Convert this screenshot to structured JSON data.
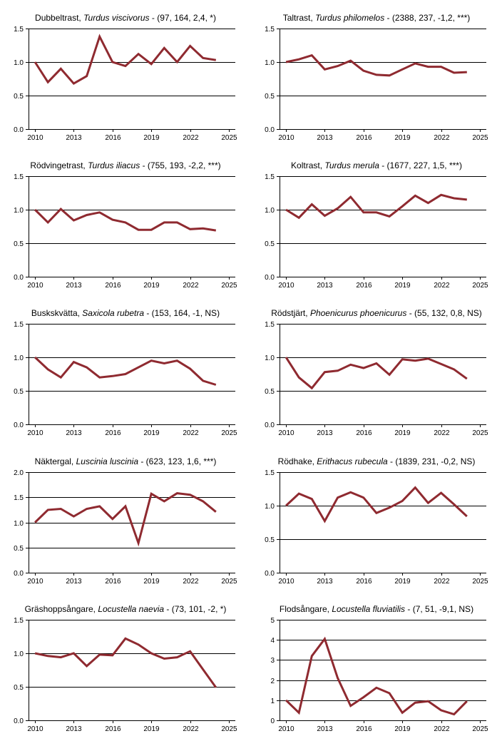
{
  "chart_data": [
    {
      "type": "line",
      "title": "Dubbeltrast, Turdus viscivorus - (97, 164, 2,4, *)",
      "title_parts": {
        "common": "Dubbeltrast, ",
        "latin": "Turdus viscivorus",
        "stats": " - (97, 164, 2,4, *)"
      },
      "x": [
        2010,
        2011,
        2012,
        2013,
        2014,
        2015,
        2016,
        2017,
        2018,
        2019,
        2020,
        2021,
        2022,
        2023,
        2024
      ],
      "values": [
        1.0,
        0.7,
        0.9,
        0.68,
        0.79,
        1.38,
        1.0,
        0.94,
        1.12,
        0.97,
        1.21,
        1.0,
        1.24,
        1.06,
        1.03
      ],
      "ylim": [
        0,
        1.5
      ],
      "yticks": [
        "0.0",
        "0.5",
        "1.0",
        "1.5"
      ],
      "ytick_values": [
        0,
        0.5,
        1.0,
        1.5
      ],
      "xticks": [
        "2010",
        "2013",
        "2016",
        "2019",
        "2022",
        "2025"
      ]
    },
    {
      "type": "line",
      "title": "Taltrast, Turdus philomelos - (2388, 237, -1,2, ***)",
      "title_parts": {
        "common": "Taltrast, ",
        "latin": "Turdus philomelos",
        "stats": " - (2388, 237, -1,2, ***)"
      },
      "x": [
        2010,
        2011,
        2012,
        2013,
        2014,
        2015,
        2016,
        2017,
        2018,
        2019,
        2020,
        2021,
        2022,
        2023,
        2024
      ],
      "values": [
        1.0,
        1.04,
        1.1,
        0.89,
        0.94,
        1.02,
        0.87,
        0.81,
        0.8,
        0.89,
        0.98,
        0.93,
        0.93,
        0.84,
        0.85
      ],
      "ylim": [
        0,
        1.5
      ],
      "yticks": [
        "0.0",
        "0.5",
        "1.0",
        "1.5"
      ],
      "ytick_values": [
        0,
        0.5,
        1.0,
        1.5
      ],
      "xticks": [
        "2010",
        "2013",
        "2016",
        "2019",
        "2022",
        "2025"
      ]
    },
    {
      "type": "line",
      "title": "Rödvingetrast, Turdus iliacus - (755, 193, -2,2, ***)",
      "title_parts": {
        "common": "Rödvingetrast, ",
        "latin": "Turdus iliacus",
        "stats": " - (755, 193, -2,2, ***)"
      },
      "x": [
        2010,
        2011,
        2012,
        2013,
        2014,
        2015,
        2016,
        2017,
        2018,
        2019,
        2020,
        2021,
        2022,
        2023,
        2024
      ],
      "values": [
        1.0,
        0.81,
        1.01,
        0.84,
        0.92,
        0.96,
        0.85,
        0.81,
        0.7,
        0.7,
        0.81,
        0.81,
        0.71,
        0.72,
        0.69
      ],
      "ylim": [
        0,
        1.5
      ],
      "yticks": [
        "0.0",
        "0.5",
        "1.0",
        "1.5"
      ],
      "ytick_values": [
        0,
        0.5,
        1.0,
        1.5
      ],
      "xticks": [
        "2010",
        "2013",
        "2016",
        "2019",
        "2022",
        "2025"
      ]
    },
    {
      "type": "line",
      "title": "Koltrast, Turdus merula - (1677, 227, 1,5, ***)",
      "title_parts": {
        "common": "Koltrast, ",
        "latin": "Turdus merula",
        "stats": " - (1677, 227, 1,5, ***)"
      },
      "x": [
        2010,
        2011,
        2012,
        2013,
        2014,
        2015,
        2016,
        2017,
        2018,
        2019,
        2020,
        2021,
        2022,
        2023,
        2024
      ],
      "values": [
        1.0,
        0.88,
        1.08,
        0.91,
        1.02,
        1.19,
        0.96,
        0.96,
        0.9,
        1.05,
        1.21,
        1.1,
        1.22,
        1.17,
        1.15
      ],
      "ylim": [
        0,
        1.5
      ],
      "yticks": [
        "0.0",
        "0.5",
        "1.0",
        "1.5"
      ],
      "ytick_values": [
        0,
        0.5,
        1.0,
        1.5
      ],
      "xticks": [
        "2010",
        "2013",
        "2016",
        "2019",
        "2022",
        "2025"
      ]
    },
    {
      "type": "line",
      "title": "Buskskvätta, Saxicola rubetra - (153, 164, -1, NS)",
      "title_parts": {
        "common": "Buskskvätta, ",
        "latin": "Saxicola rubetra",
        "stats": " - (153, 164, -1, NS)"
      },
      "x": [
        2010,
        2011,
        2012,
        2013,
        2014,
        2015,
        2016,
        2017,
        2018,
        2019,
        2020,
        2021,
        2022,
        2023,
        2024
      ],
      "values": [
        1.0,
        0.82,
        0.7,
        0.93,
        0.85,
        0.7,
        0.72,
        0.75,
        0.85,
        0.95,
        0.91,
        0.95,
        0.83,
        0.65,
        0.59
      ],
      "ylim": [
        0,
        1.5
      ],
      "yticks": [
        "0.0",
        "0.5",
        "1.0",
        "1.5"
      ],
      "ytick_values": [
        0,
        0.5,
        1.0,
        1.5
      ],
      "xticks": [
        "2010",
        "2013",
        "2016",
        "2019",
        "2022",
        "2025"
      ]
    },
    {
      "type": "line",
      "title": "Rödstjärt, Phoenicurus phoenicurus - (55, 132, 0,8, NS)",
      "title_parts": {
        "common": "Rödstjärt, ",
        "latin": "Phoenicurus phoenicurus",
        "stats": " - (55, 132, 0,8, NS)"
      },
      "x": [
        2010,
        2011,
        2012,
        2013,
        2014,
        2015,
        2016,
        2017,
        2018,
        2019,
        2020,
        2021,
        2022,
        2023,
        2024
      ],
      "values": [
        1.0,
        0.7,
        0.54,
        0.78,
        0.8,
        0.89,
        0.84,
        0.91,
        0.74,
        0.97,
        0.95,
        0.98,
        0.9,
        0.82,
        0.68
      ],
      "ylim": [
        0,
        1.5
      ],
      "yticks": [
        "0.0",
        "0.5",
        "1.0",
        "1.5"
      ],
      "ytick_values": [
        0,
        0.5,
        1.0,
        1.5
      ],
      "xticks": [
        "2010",
        "2013",
        "2016",
        "2019",
        "2022",
        "2025"
      ]
    },
    {
      "type": "line",
      "title": "Näktergal, Luscinia luscinia - (623, 123, 1,6, ***)",
      "title_parts": {
        "common": "Näktergal, ",
        "latin": "Luscinia luscinia",
        "stats": " - (623, 123, 1,6, ***)"
      },
      "x": [
        2010,
        2011,
        2012,
        2013,
        2014,
        2015,
        2016,
        2017,
        2018,
        2019,
        2020,
        2021,
        2022,
        2023,
        2024
      ],
      "values": [
        1.0,
        1.25,
        1.27,
        1.12,
        1.27,
        1.32,
        1.07,
        1.32,
        0.59,
        1.57,
        1.42,
        1.58,
        1.55,
        1.42,
        1.21
      ],
      "ylim": [
        0,
        2.0
      ],
      "yticks": [
        "0.0",
        "0.5",
        "1.0",
        "1.5",
        "2.0"
      ],
      "ytick_values": [
        0,
        0.5,
        1.0,
        1.5,
        2.0
      ],
      "xticks": [
        "2010",
        "2013",
        "2016",
        "2019",
        "2022",
        "2025"
      ]
    },
    {
      "type": "line",
      "title": "Rödhake, Erithacus rubecula - (1839, 231, -0,2, NS)",
      "title_parts": {
        "common": "Rödhake, ",
        "latin": "Erithacus rubecula",
        "stats": " - (1839, 231, -0,2, NS)"
      },
      "x": [
        2010,
        2011,
        2012,
        2013,
        2014,
        2015,
        2016,
        2017,
        2018,
        2019,
        2020,
        2021,
        2022,
        2023,
        2024
      ],
      "values": [
        1.0,
        1.18,
        1.1,
        0.77,
        1.12,
        1.2,
        1.12,
        0.89,
        0.97,
        1.07,
        1.27,
        1.04,
        1.19,
        1.02,
        0.84
      ],
      "ylim": [
        0,
        1.5
      ],
      "yticks": [
        "0.0",
        "0.5",
        "1.0",
        "1.5"
      ],
      "ytick_values": [
        0,
        0.5,
        1.0,
        1.5
      ],
      "xticks": [
        "2010",
        "2013",
        "2016",
        "2019",
        "2022",
        "2025"
      ]
    },
    {
      "type": "line",
      "title": "Gräshoppsångare, Locustella naevia - (73, 101, -2, *)",
      "title_parts": {
        "common": "Gräshoppsångare, ",
        "latin": "Locustella naevia",
        "stats": " - (73, 101, -2, *)"
      },
      "x": [
        2010,
        2011,
        2012,
        2013,
        2014,
        2015,
        2016,
        2017,
        2018,
        2019,
        2020,
        2021,
        2022,
        2023,
        2024
      ],
      "values": [
        1.0,
        0.96,
        0.94,
        1.0,
        0.81,
        0.98,
        0.97,
        1.22,
        1.13,
        1.0,
        0.92,
        0.94,
        1.03,
        0.76,
        0.49
      ],
      "ylim": [
        0,
        1.5
      ],
      "yticks": [
        "0.0",
        "0.5",
        "1.0",
        "1.5"
      ],
      "ytick_values": [
        0,
        0.5,
        1.0,
        1.5
      ],
      "xticks": [
        "2010",
        "2013",
        "2016",
        "2019",
        "2022",
        "2025"
      ]
    },
    {
      "type": "line",
      "title": "Flodsångare, Locustella fluviatilis - (7, 51, -9,1, NS)",
      "title_parts": {
        "common": "Flodsångare, ",
        "latin": "Locustella fluviatilis",
        "stats": " - (7, 51, -9,1, NS)"
      },
      "x": [
        2010,
        2011,
        2012,
        2013,
        2014,
        2015,
        2016,
        2017,
        2018,
        2019,
        2020,
        2021,
        2022,
        2023,
        2024
      ],
      "values": [
        1.0,
        0.38,
        3.2,
        4.05,
        2.1,
        0.72,
        1.15,
        1.62,
        1.35,
        0.38,
        0.88,
        0.95,
        0.5,
        0.3,
        0.95
      ],
      "ylim": [
        0,
        5
      ],
      "yticks": [
        "0",
        "1",
        "2",
        "3",
        "4",
        "5"
      ],
      "ytick_values": [
        0,
        1,
        2,
        3,
        4,
        5
      ],
      "xticks": [
        "2010",
        "2013",
        "2016",
        "2019",
        "2022",
        "2025"
      ]
    }
  ],
  "style": {
    "line_color": "#8f2a30",
    "grid_color": "#000000",
    "axis_color": "#000000"
  }
}
